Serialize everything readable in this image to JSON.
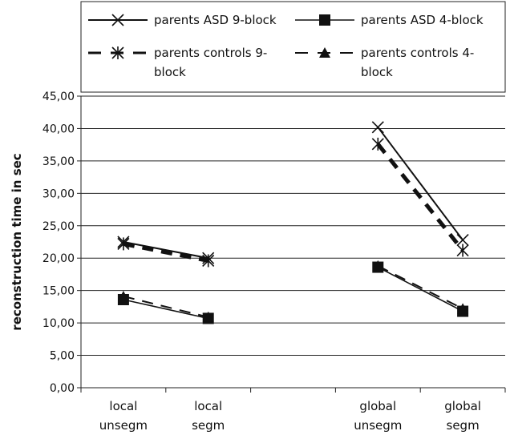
{
  "chart_data": {
    "type": "line",
    "title": "",
    "xlabel": "",
    "ylabel": "reconstruction time in sec",
    "ylim": [
      0,
      45
    ],
    "yticks": [
      "0,00",
      "5,00",
      "10,00",
      "15,00",
      "20,00",
      "25,00",
      "30,00",
      "35,00",
      "40,00",
      "45,00"
    ],
    "grid": "horizontal",
    "legend_position": "top",
    "categories": [
      [
        "local",
        "unsegm"
      ],
      [
        "local",
        "segm"
      ],
      [
        "global",
        "unsegm"
      ],
      [
        "global",
        "segm"
      ]
    ],
    "category_slots": [
      0,
      1,
      3,
      4
    ],
    "slot_count": 5,
    "segments": [
      [
        0,
        1
      ],
      [
        2,
        3
      ]
    ],
    "series": [
      {
        "name_lines": [
          "parents ASD 9-block"
        ],
        "values": [
          22.5,
          20.0,
          40.2,
          22.8
        ],
        "marker": "x",
        "dash": "solid",
        "width": 2
      },
      {
        "name_lines": [
          "parents ASD 4-block"
        ],
        "values": [
          13.6,
          10.7,
          18.6,
          11.8
        ],
        "marker": "square",
        "dash": "solid",
        "width": 1.6
      },
      {
        "name_lines": [
          "parents controls 9-",
          "block"
        ],
        "values": [
          22.2,
          19.6,
          37.6,
          21.2
        ],
        "marker": "asterisk",
        "dash": "dashed",
        "width": 5
      },
      {
        "name_lines": [
          "parents controls 4-",
          "block"
        ],
        "values": [
          14.1,
          10.9,
          18.8,
          12.2
        ],
        "marker": "triangle",
        "dash": "dashed",
        "width": 2
      }
    ]
  }
}
